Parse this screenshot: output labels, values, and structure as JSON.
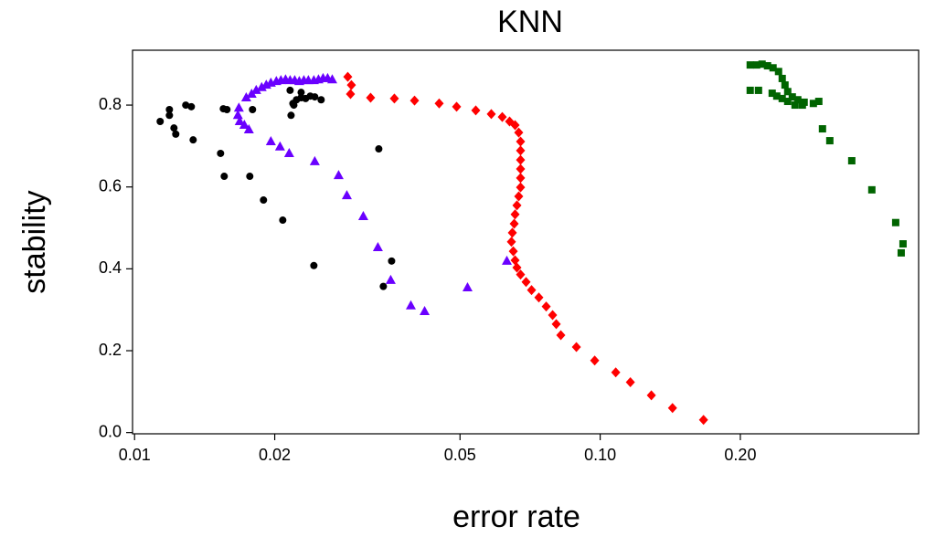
{
  "chart_data": {
    "type": "scatter",
    "title": "KNN",
    "x_label": "error rate",
    "y_label": "stability",
    "x_scale": "log",
    "grid": false,
    "xlim": [
      0.0099,
      0.483
    ],
    "ylim": [
      -0.003,
      0.934
    ],
    "xticks": [
      0.01,
      0.02,
      0.05,
      {
        "value": 0.1,
        "label": "0.10"
      },
      {
        "value": 0.2,
        "label": "0.20"
      }
    ],
    "yticks": [
      {
        "value": 0,
        "label": "0.0"
      },
      0.2,
      0.4,
      0.6,
      0.8
    ],
    "series": [
      {
        "color": "#000000",
        "marker": "circle",
        "x": [
          0.01135,
          0.01188,
          0.01188,
          0.01215,
          0.01226,
          0.01288,
          0.01324,
          0.01336,
          0.0153,
          0.01551,
          0.01579,
          0.01558,
          0.01792,
          0.01768,
          0.01892,
          0.02081,
          0.02168,
          0.02188,
          0.02158,
          0.02198,
          0.02279,
          0.0233,
          0.02227,
          0.02279,
          0.02384,
          0.02438,
          0.02516,
          0.02427,
          0.03346,
          0.03422,
          0.03565
        ],
        "values": [
          0.76,
          0.789,
          0.775,
          0.744,
          0.729,
          0.8,
          0.796,
          0.715,
          0.682,
          0.791,
          0.789,
          0.626,
          0.789,
          0.626,
          0.568,
          0.519,
          0.775,
          0.804,
          0.836,
          0.8,
          0.818,
          0.816,
          0.813,
          0.831,
          0.822,
          0.82,
          0.813,
          0.408,
          0.693,
          0.357,
          0.419
        ]
      },
      {
        "color": "#6a00ff",
        "marker": "triangle",
        "x": [
          0.01675,
          0.01737,
          0.01784,
          0.01825,
          0.01875,
          0.01918,
          0.01962,
          0.02016,
          0.02062,
          0.0211,
          0.02158,
          0.02208,
          0.02258,
          0.0231,
          0.02362,
          0.02427,
          0.02483,
          0.0254,
          0.02598,
          0.02658,
          0.01667,
          0.01682,
          0.01721,
          0.0176,
          0.01962,
          0.02053,
          0.02148,
          0.02438,
          0.02743,
          0.02857,
          0.03099,
          0.03331,
          0.03549,
          0.03921,
          0.04197,
          0.05189,
          0.06303
        ],
        "values": [
          0.793,
          0.818,
          0.827,
          0.836,
          0.843,
          0.849,
          0.854,
          0.858,
          0.86,
          0.862,
          0.86,
          0.86,
          0.858,
          0.86,
          0.86,
          0.86,
          0.862,
          0.865,
          0.865,
          0.862,
          0.775,
          0.76,
          0.751,
          0.74,
          0.711,
          0.698,
          0.682,
          0.662,
          0.628,
          0.579,
          0.528,
          0.452,
          0.372,
          0.31,
          0.296,
          0.354,
          0.419
        ]
      },
      {
        "color": "#ff0000",
        "marker": "diamond",
        "x": [
          0.0287,
          0.02922,
          0.02909,
          0.03213,
          0.03614,
          0.03993,
          0.0451,
          0.04916,
          0.05405,
          0.05836,
          0.06162,
          0.06389,
          0.06565,
          0.06684,
          0.06745,
          0.06745,
          0.06745,
          0.06745,
          0.06745,
          0.06745,
          0.06684,
          0.06625,
          0.06565,
          0.06536,
          0.06477,
          0.06447,
          0.06507,
          0.06565,
          0.06625,
          0.06745,
          0.06931,
          0.07122,
          0.07384,
          0.07657,
          0.07903,
          0.08047,
          0.08231,
          0.0889,
          0.09732,
          0.108,
          0.1161,
          0.1288,
          0.143,
          0.1667
        ],
        "values": [
          0.869,
          0.849,
          0.827,
          0.818,
          0.816,
          0.811,
          0.804,
          0.796,
          0.787,
          0.778,
          0.771,
          0.76,
          0.751,
          0.733,
          0.711,
          0.689,
          0.666,
          0.644,
          0.622,
          0.599,
          0.577,
          0.555,
          0.533,
          0.51,
          0.488,
          0.466,
          0.443,
          0.421,
          0.403,
          0.386,
          0.368,
          0.348,
          0.33,
          0.308,
          0.287,
          0.265,
          0.238,
          0.209,
          0.176,
          0.147,
          0.123,
          0.091,
          0.06,
          0.031
        ]
      },
      {
        "color": "#006400",
        "marker": "square",
        "x": [
          0.21,
          0.2168,
          0.2227,
          0.2288,
          0.2351,
          0.2416,
          0.246,
          0.2494,
          0.2528,
          0.2586,
          0.2657,
          0.2742,
          0.287,
          0.2948,
          0.21,
          0.2188,
          0.2341,
          0.2395,
          0.246,
          0.2528,
          0.2621,
          0.2718,
          0.3002,
          0.3113,
          0.347,
          0.3832,
          0.4312,
          0.4471,
          0.4431
        ],
        "values": [
          0.898,
          0.898,
          0.9,
          0.896,
          0.891,
          0.882,
          0.865,
          0.849,
          0.833,
          0.82,
          0.813,
          0.807,
          0.804,
          0.809,
          0.836,
          0.836,
          0.829,
          0.822,
          0.816,
          0.809,
          0.8,
          0.8,
          0.742,
          0.713,
          0.664,
          0.593,
          0.513,
          0.461,
          0.439
        ]
      }
    ]
  }
}
